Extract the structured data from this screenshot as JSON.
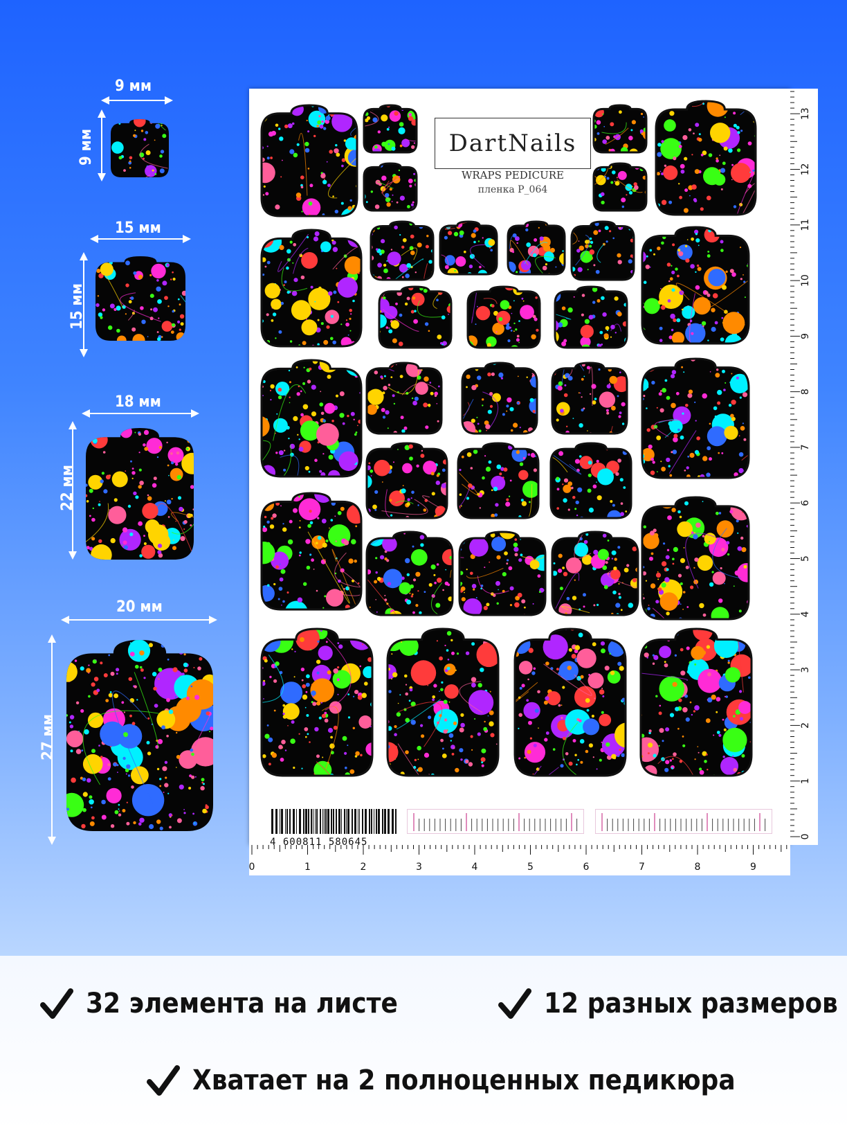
{
  "colors": {
    "background_top": "#1e63ff",
    "background_bottom": "#b9d6ff",
    "sticker_base": "#050505",
    "text": "#111111"
  },
  "dimensions": [
    {
      "width_label": "9 мм",
      "height_label": "9 мм"
    },
    {
      "width_label": "15 мм",
      "height_label": "15 мм"
    },
    {
      "width_label": "18 мм",
      "height_label": "22 мм"
    },
    {
      "width_label": "20 мм",
      "height_label": "27 мм"
    }
  ],
  "sheet": {
    "brand": "DartNails",
    "product": "WRAPS PEDICURE",
    "article": "пленка P_064",
    "barcode": "4 600811 580645",
    "ruler_vertical": [
      "0",
      "1",
      "2",
      "3",
      "4",
      "5",
      "6",
      "7",
      "8",
      "9",
      "10",
      "11",
      "12",
      "13"
    ],
    "ruler_horizontal": [
      "0",
      "1",
      "2",
      "3",
      "4",
      "5",
      "6",
      "7",
      "8",
      "9"
    ]
  },
  "features": [
    {
      "icon": "check-icon",
      "text": "32 элемента на листе"
    },
    {
      "icon": "check-icon",
      "text": "12 разных размеров"
    },
    {
      "icon": "check-icon",
      "text": "Хватает на 2 полноценных педикюра"
    }
  ]
}
